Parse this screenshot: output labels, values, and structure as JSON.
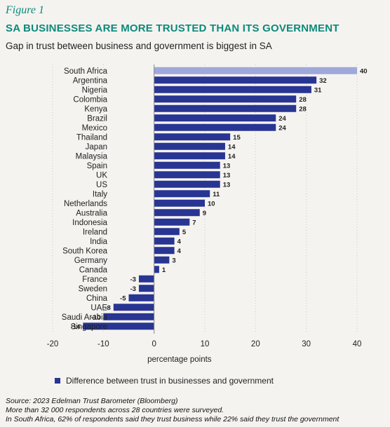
{
  "figure_label": "Figure 1",
  "chart_data": {
    "type": "bar",
    "orientation": "horizontal",
    "title": "SA BUSINESSES ARE MORE TRUSTED THAN ITS GOVERNMENT",
    "subtitle": "Gap in trust between business and government is biggest in SA",
    "xlabel": "percentage points",
    "xlim": [
      -20,
      40
    ],
    "xticks": [
      -20,
      -10,
      0,
      10,
      20,
      30,
      40
    ],
    "grid": "vertical dotted",
    "legend_position": "bottom-left",
    "categories": [
      "South Africa",
      "Argentina",
      "Nigeria",
      "Colombia",
      "Kenya",
      "Brazil",
      "Mexico",
      "Thailand",
      "Japan",
      "Malaysia",
      "Spain",
      "UK",
      "US",
      "Italy",
      "Netherlands",
      "Australia",
      "Indonesia",
      "Ireland",
      "India",
      "South Korea",
      "Germany",
      "Canada",
      "France",
      "Sweden",
      "China",
      "UAE",
      "Saudi Arabia",
      "Singapore"
    ],
    "series": [
      {
        "name": "Difference between trust in businesses and government",
        "values": [
          40,
          32,
          31,
          28,
          28,
          24,
          24,
          15,
          14,
          14,
          13,
          13,
          13,
          11,
          10,
          9,
          7,
          5,
          4,
          4,
          3,
          1,
          -3,
          -3,
          -5,
          -8,
          -10,
          -14
        ]
      }
    ],
    "colors": {
      "primary": "#283593",
      "highlight": "#9fa8da"
    },
    "highlight_category": "South Africa"
  },
  "footer": {
    "source": "Source: 2023 Edelman Trust Barometer (Bloomberg)",
    "note1": "More than 32 000 respondents across 28 countries were surveyed.",
    "note2": "In South Africa, 62% of respondents said they trust business while 22% said they trust the government"
  }
}
